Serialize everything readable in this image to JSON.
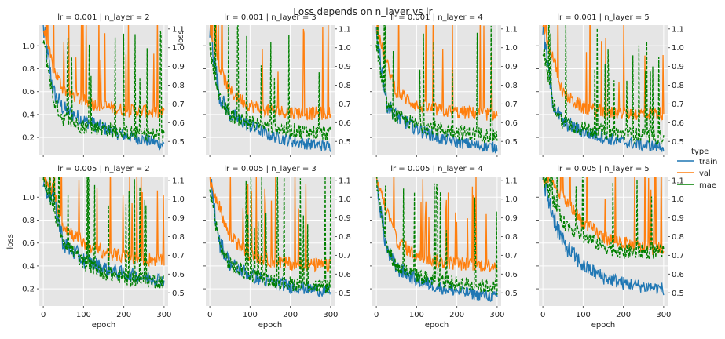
{
  "suptitle": "Loss depends on n_layer vs lr",
  "chart_data": {
    "type": "line",
    "title": "Loss depends on n_layer vs lr",
    "xlabel": "epoch",
    "ylabel_left": "loss",
    "ylabel_right_top_row": "loss",
    "xlim": [
      -10,
      310
    ],
    "ylim_left": [
      0.05,
      1.18
    ],
    "ylim_right": [
      1.12,
      0.43
    ],
    "right_axis_inverted": true,
    "grid": true,
    "xticks": [
      "0",
      "100",
      "200",
      "300"
    ],
    "yticks_left": [
      "0.2",
      "0.4",
      "0.6",
      "0.8",
      "1.0"
    ],
    "yticks_right": [
      "0.5",
      "0.6",
      "0.7",
      "0.8",
      "0.9",
      "1.0",
      "1.1"
    ],
    "legend": {
      "title": "type",
      "placement": "right",
      "entries": [
        {
          "name": "train",
          "color": "#1f77b4",
          "style": "solid"
        },
        {
          "name": "val",
          "color": "#ff7f0e",
          "style": "solid"
        },
        {
          "name": "mae",
          "color": "#008000",
          "style": "dashed"
        }
      ]
    },
    "panels": [
      {
        "title": "lr = 0.001 | n_layer = 2",
        "lr": 0.001,
        "n_layer": 2,
        "series": [
          {
            "name": "train",
            "x": [
              0,
              25,
              50,
              100,
              150,
              200,
              250,
              300
            ],
            "values": [
              1.15,
              0.6,
              0.45,
              0.35,
              0.28,
              0.22,
              0.18,
              0.14
            ]
          },
          {
            "name": "val",
            "x": [
              0,
              25,
              50,
              100,
              150,
              200,
              250,
              300
            ],
            "values": [
              1.15,
              0.8,
              0.62,
              0.52,
              0.47,
              0.44,
              0.43,
              0.41
            ]
          },
          {
            "name": "mae",
            "x": [
              0,
              25,
              50,
              100,
              150,
              200,
              250,
              300
            ],
            "values": [
              1.05,
              0.72,
              0.62,
              0.58,
              0.57,
              0.55,
              0.54,
              0.53
            ]
          }
        ]
      },
      {
        "title": "lr = 0.001 | n_layer = 3",
        "lr": 0.001,
        "n_layer": 3,
        "series": [
          {
            "name": "train",
            "x": [
              0,
              25,
              50,
              100,
              150,
              200,
              250,
              300
            ],
            "values": [
              1.15,
              0.55,
              0.4,
              0.3,
              0.22,
              0.17,
              0.14,
              0.12
            ]
          },
          {
            "name": "val",
            "x": [
              0,
              25,
              50,
              100,
              150,
              200,
              250,
              300
            ],
            "values": [
              1.15,
              0.8,
              0.6,
              0.48,
              0.43,
              0.42,
              0.41,
              0.41
            ]
          },
          {
            "name": "mae",
            "x": [
              0,
              25,
              50,
              100,
              150,
              200,
              250,
              300
            ],
            "values": [
              1.0,
              0.72,
              0.64,
              0.6,
              0.58,
              0.56,
              0.55,
              0.54
            ]
          }
        ]
      },
      {
        "title": "lr = 0.001 | n_layer = 4",
        "lr": 0.001,
        "n_layer": 4,
        "series": [
          {
            "name": "train",
            "x": [
              0,
              25,
              50,
              100,
              150,
              200,
              250,
              300
            ],
            "values": [
              1.15,
              0.5,
              0.38,
              0.28,
              0.2,
              0.16,
              0.13,
              0.11
            ]
          },
          {
            "name": "val",
            "x": [
              0,
              25,
              50,
              100,
              150,
              200,
              250,
              300
            ],
            "values": [
              1.15,
              0.85,
              0.6,
              0.48,
              0.44,
              0.42,
              0.41,
              0.4
            ]
          },
          {
            "name": "mae",
            "x": [
              0,
              25,
              50,
              100,
              150,
              200,
              250,
              300
            ],
            "values": [
              1.0,
              0.7,
              0.63,
              0.59,
              0.57,
              0.55,
              0.54,
              0.53
            ]
          }
        ]
      },
      {
        "title": "lr = 0.001 | n_layer = 5",
        "lr": 0.001,
        "n_layer": 5,
        "series": [
          {
            "name": "train",
            "x": [
              0,
              25,
              50,
              100,
              150,
              200,
              250,
              300
            ],
            "values": [
              1.15,
              0.5,
              0.33,
              0.25,
              0.2,
              0.16,
              0.13,
              0.12
            ]
          },
          {
            "name": "val",
            "x": [
              0,
              25,
              50,
              100,
              150,
              200,
              250,
              300
            ],
            "values": [
              1.15,
              0.9,
              0.58,
              0.46,
              0.42,
              0.41,
              0.41,
              0.41
            ]
          },
          {
            "name": "mae",
            "x": [
              0,
              25,
              50,
              100,
              150,
              200,
              250,
              300
            ],
            "values": [
              1.0,
              0.7,
              0.6,
              0.57,
              0.55,
              0.54,
              0.53,
              0.52
            ]
          }
        ]
      },
      {
        "title": "lr = 0.005 | n_layer = 2",
        "lr": 0.005,
        "n_layer": 2,
        "series": [
          {
            "name": "train",
            "x": [
              0,
              25,
              50,
              100,
              150,
              200,
              250,
              300
            ],
            "values": [
              1.15,
              1.0,
              0.6,
              0.45,
              0.38,
              0.33,
              0.3,
              0.28
            ]
          },
          {
            "name": "val",
            "x": [
              0,
              25,
              50,
              100,
              150,
              200,
              250,
              300
            ],
            "values": [
              1.15,
              1.05,
              0.75,
              0.6,
              0.52,
              0.48,
              0.46,
              0.45
            ]
          },
          {
            "name": "mae",
            "x": [
              0,
              25,
              50,
              100,
              150,
              200,
              250,
              300
            ],
            "values": [
              1.12,
              0.95,
              0.78,
              0.66,
              0.61,
              0.58,
              0.57,
              0.56
            ]
          }
        ]
      },
      {
        "title": "lr = 0.005 | n_layer = 3",
        "lr": 0.005,
        "n_layer": 3,
        "series": [
          {
            "name": "train",
            "x": [
              0,
              25,
              50,
              100,
              150,
              200,
              250,
              300
            ],
            "values": [
              1.15,
              0.6,
              0.42,
              0.32,
              0.26,
              0.22,
              0.2,
              0.18
            ]
          },
          {
            "name": "val",
            "x": [
              0,
              25,
              50,
              100,
              150,
              200,
              250,
              300
            ],
            "values": [
              1.15,
              0.9,
              0.65,
              0.5,
              0.45,
              0.42,
              0.41,
              0.4
            ]
          },
          {
            "name": "mae",
            "x": [
              0,
              25,
              50,
              100,
              150,
              200,
              250,
              300
            ],
            "values": [
              1.05,
              0.75,
              0.65,
              0.6,
              0.57,
              0.55,
              0.54,
              0.53
            ]
          }
        ]
      },
      {
        "title": "lr = 0.005 | n_layer = 4",
        "lr": 0.005,
        "n_layer": 4,
        "series": [
          {
            "name": "train",
            "x": [
              0,
              25,
              50,
              100,
              150,
              200,
              250,
              300
            ],
            "values": [
              1.15,
              0.55,
              0.38,
              0.28,
              0.22,
              0.18,
              0.15,
              0.13
            ]
          },
          {
            "name": "val",
            "x": [
              0,
              25,
              50,
              100,
              150,
              200,
              250,
              300
            ],
            "values": [
              1.15,
              0.9,
              0.62,
              0.49,
              0.44,
              0.42,
              0.41,
              0.41
            ]
          },
          {
            "name": "mae",
            "x": [
              0,
              25,
              50,
              100,
              150,
              200,
              250,
              300
            ],
            "values": [
              1.1,
              0.75,
              0.64,
              0.59,
              0.57,
              0.55,
              0.54,
              0.53
            ]
          }
        ]
      },
      {
        "title": "lr = 0.005 | n_layer = 5",
        "lr": 0.005,
        "n_layer": 5,
        "series": [
          {
            "name": "train",
            "x": [
              0,
              25,
              50,
              100,
              150,
              200,
              250,
              300
            ],
            "values": [
              1.15,
              0.85,
              0.6,
              0.4,
              0.3,
              0.25,
              0.22,
              0.2
            ]
          },
          {
            "name": "val",
            "x": [
              0,
              25,
              50,
              100,
              150,
              200,
              250,
              300
            ],
            "values": [
              1.15,
              1.1,
              1.0,
              0.78,
              0.65,
              0.6,
              0.56,
              0.55
            ]
          },
          {
            "name": "mae",
            "x": [
              0,
              25,
              50,
              100,
              150,
              200,
              250,
              300
            ],
            "values": [
              1.12,
              1.0,
              0.88,
              0.8,
              0.75,
              0.72,
              0.72,
              0.72
            ]
          }
        ]
      }
    ]
  }
}
